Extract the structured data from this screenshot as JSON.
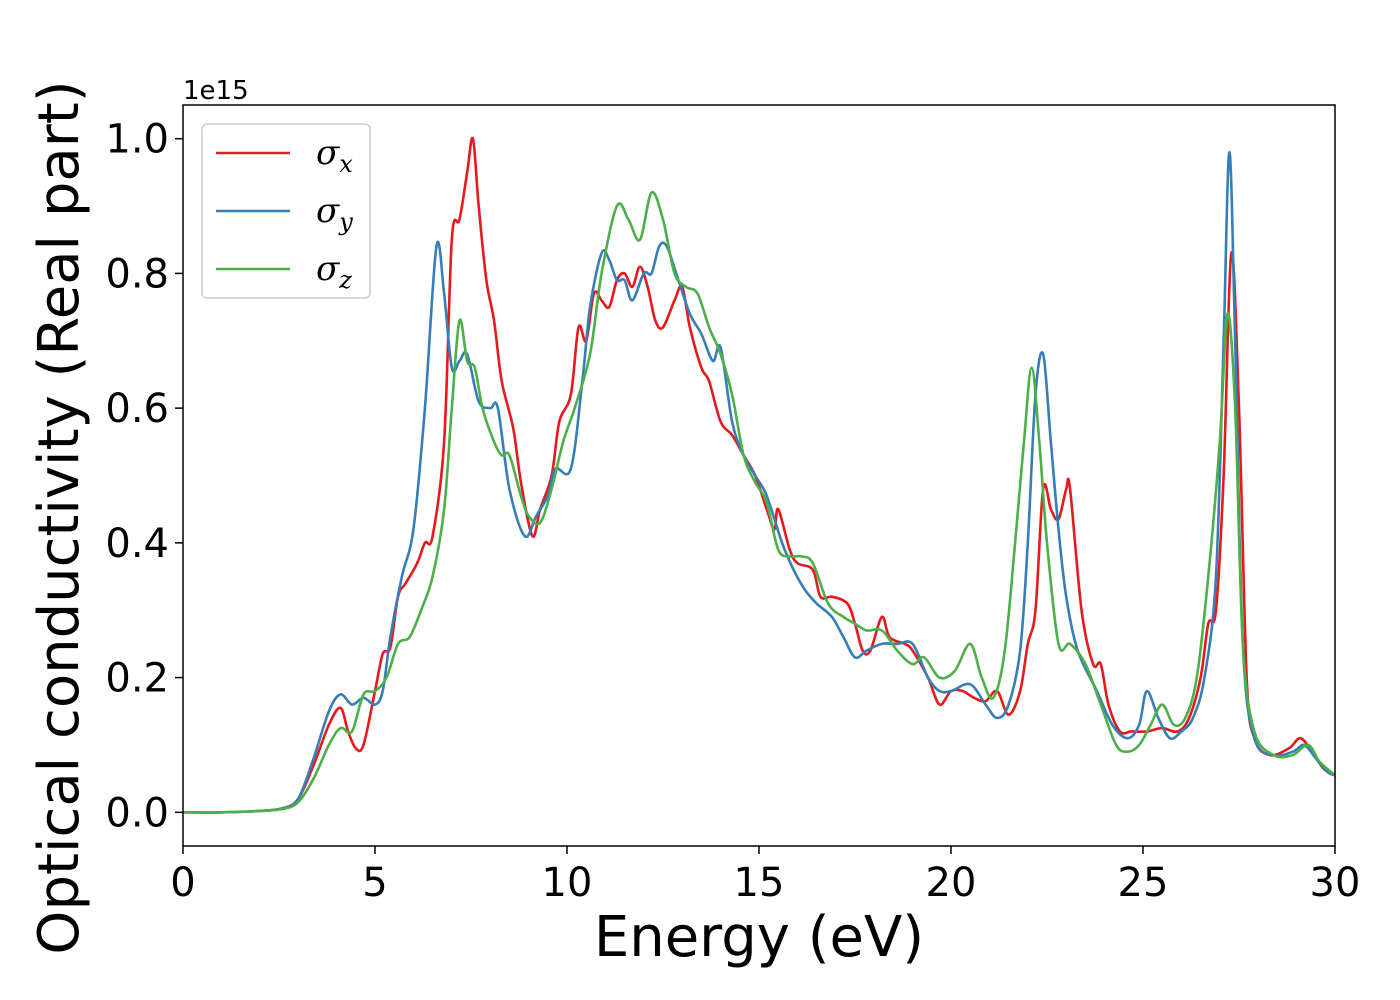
{
  "chart_data": {
    "type": "line",
    "title": "",
    "xlabel": "Energy (eV)",
    "ylabel": "Optical conductivity (Real part)",
    "y_offset_label": "1e15",
    "xlim": [
      0,
      30
    ],
    "ylim": [
      -0.05,
      1.05
    ],
    "x_ticks": [
      0,
      5,
      10,
      15,
      20,
      25,
      30
    ],
    "x_tick_labels": [
      "0",
      "5",
      "10",
      "15",
      "20",
      "25",
      "30"
    ],
    "y_ticks": [
      0.0,
      0.2,
      0.4,
      0.6,
      0.8,
      1.0
    ],
    "y_tick_labels": [
      "0.0",
      "0.2",
      "0.4",
      "0.6",
      "0.8",
      "1.0"
    ],
    "grid": false,
    "legend_position": "top-left",
    "series": [
      {
        "name": "σx",
        "legend_symbol": "σ",
        "legend_subscript": "x",
        "color": "#e41a1c",
        "points": [
          [
            0,
            0
          ],
          [
            1,
            0
          ],
          [
            2,
            0.002
          ],
          [
            2.6,
            0.006
          ],
          [
            3,
            0.02
          ],
          [
            3.4,
            0.07
          ],
          [
            3.8,
            0.13
          ],
          [
            4.1,
            0.155
          ],
          [
            4.3,
            0.12
          ],
          [
            4.5,
            0.095
          ],
          [
            4.7,
            0.1
          ],
          [
            5,
            0.18
          ],
          [
            5.2,
            0.235
          ],
          [
            5.4,
            0.245
          ],
          [
            5.6,
            0.32
          ],
          [
            5.8,
            0.34
          ],
          [
            6.1,
            0.37
          ],
          [
            6.3,
            0.4
          ],
          [
            6.5,
            0.41
          ],
          [
            6.8,
            0.55
          ],
          [
            7,
            0.85
          ],
          [
            7.2,
            0.88
          ],
          [
            7.4,
            0.95
          ],
          [
            7.55,
            1.0
          ],
          [
            7.7,
            0.9
          ],
          [
            7.9,
            0.79
          ],
          [
            8.1,
            0.73
          ],
          [
            8.3,
            0.64
          ],
          [
            8.6,
            0.57
          ],
          [
            8.8,
            0.49
          ],
          [
            9.1,
            0.41
          ],
          [
            9.3,
            0.45
          ],
          [
            9.6,
            0.5
          ],
          [
            9.8,
            0.58
          ],
          [
            10.1,
            0.62
          ],
          [
            10.3,
            0.72
          ],
          [
            10.5,
            0.7
          ],
          [
            10.7,
            0.77
          ],
          [
            10.9,
            0.76
          ],
          [
            11.1,
            0.75
          ],
          [
            11.3,
            0.79
          ],
          [
            11.5,
            0.8
          ],
          [
            11.7,
            0.78
          ],
          [
            11.9,
            0.81
          ],
          [
            12.1,
            0.78
          ],
          [
            12.3,
            0.73
          ],
          [
            12.5,
            0.72
          ],
          [
            12.8,
            0.76
          ],
          [
            13,
            0.78
          ],
          [
            13.2,
            0.72
          ],
          [
            13.5,
            0.66
          ],
          [
            13.7,
            0.64
          ],
          [
            14,
            0.58
          ],
          [
            14.3,
            0.56
          ],
          [
            14.6,
            0.53
          ],
          [
            14.9,
            0.5
          ],
          [
            15.2,
            0.45
          ],
          [
            15.4,
            0.42
          ],
          [
            15.5,
            0.45
          ],
          [
            15.8,
            0.39
          ],
          [
            16,
            0.37
          ],
          [
            16.4,
            0.36
          ],
          [
            16.6,
            0.32
          ],
          [
            16.9,
            0.32
          ],
          [
            17.3,
            0.31
          ],
          [
            17.5,
            0.28
          ],
          [
            17.7,
            0.24
          ],
          [
            17.9,
            0.24
          ],
          [
            18.2,
            0.29
          ],
          [
            18.4,
            0.26
          ],
          [
            18.8,
            0.25
          ],
          [
            19,
            0.24
          ],
          [
            19.4,
            0.2
          ],
          [
            19.7,
            0.16
          ],
          [
            20,
            0.18
          ],
          [
            20.3,
            0.18
          ],
          [
            20.6,
            0.17
          ],
          [
            20.9,
            0.165
          ],
          [
            21.2,
            0.18
          ],
          [
            21.5,
            0.145
          ],
          [
            21.8,
            0.18
          ],
          [
            22,
            0.25
          ],
          [
            22.2,
            0.3
          ],
          [
            22.4,
            0.48
          ],
          [
            22.6,
            0.45
          ],
          [
            22.8,
            0.435
          ],
          [
            23,
            0.48
          ],
          [
            23.1,
            0.48
          ],
          [
            23.4,
            0.3
          ],
          [
            23.7,
            0.22
          ],
          [
            23.9,
            0.22
          ],
          [
            24.1,
            0.16
          ],
          [
            24.4,
            0.12
          ],
          [
            24.7,
            0.12
          ],
          [
            25.1,
            0.12
          ],
          [
            25.5,
            0.125
          ],
          [
            25.9,
            0.12
          ],
          [
            26.2,
            0.14
          ],
          [
            26.5,
            0.2
          ],
          [
            26.7,
            0.28
          ],
          [
            26.9,
            0.3
          ],
          [
            27.1,
            0.5
          ],
          [
            27.3,
            0.83
          ],
          [
            27.5,
            0.6
          ],
          [
            27.7,
            0.2
          ],
          [
            27.9,
            0.11
          ],
          [
            28.3,
            0.085
          ],
          [
            28.8,
            0.095
          ],
          [
            29.1,
            0.11
          ],
          [
            29.4,
            0.09
          ],
          [
            29.7,
            0.065
          ],
          [
            30,
            0.055
          ]
        ]
      },
      {
        "name": "σy",
        "legend_symbol": "σ",
        "legend_subscript": "y",
        "color": "#377eb8",
        "points": [
          [
            0,
            0
          ],
          [
            1,
            0
          ],
          [
            2,
            0.002
          ],
          [
            2.6,
            0.006
          ],
          [
            3,
            0.02
          ],
          [
            3.4,
            0.08
          ],
          [
            3.8,
            0.15
          ],
          [
            4.1,
            0.175
          ],
          [
            4.4,
            0.16
          ],
          [
            4.7,
            0.17
          ],
          [
            5,
            0.16
          ],
          [
            5.2,
            0.18
          ],
          [
            5.4,
            0.26
          ],
          [
            5.7,
            0.35
          ],
          [
            6,
            0.42
          ],
          [
            6.3,
            0.6
          ],
          [
            6.6,
            0.84
          ],
          [
            6.8,
            0.77
          ],
          [
            7,
            0.66
          ],
          [
            7.2,
            0.67
          ],
          [
            7.4,
            0.68
          ],
          [
            7.7,
            0.61
          ],
          [
            8,
            0.6
          ],
          [
            8.2,
            0.6
          ],
          [
            8.5,
            0.48
          ],
          [
            8.9,
            0.41
          ],
          [
            9.2,
            0.44
          ],
          [
            9.5,
            0.47
          ],
          [
            9.7,
            0.51
          ],
          [
            10.1,
            0.51
          ],
          [
            10.4,
            0.64
          ],
          [
            10.6,
            0.75
          ],
          [
            10.9,
            0.83
          ],
          [
            11.1,
            0.82
          ],
          [
            11.3,
            0.79
          ],
          [
            11.5,
            0.79
          ],
          [
            11.7,
            0.76
          ],
          [
            12,
            0.8
          ],
          [
            12.2,
            0.8
          ],
          [
            12.4,
            0.84
          ],
          [
            12.6,
            0.84
          ],
          [
            12.9,
            0.79
          ],
          [
            13.2,
            0.74
          ],
          [
            13.5,
            0.71
          ],
          [
            13.8,
            0.67
          ],
          [
            14,
            0.69
          ],
          [
            14.3,
            0.58
          ],
          [
            14.6,
            0.53
          ],
          [
            14.9,
            0.5
          ],
          [
            15.2,
            0.47
          ],
          [
            15.6,
            0.4
          ],
          [
            15.9,
            0.36
          ],
          [
            16.2,
            0.33
          ],
          [
            16.5,
            0.31
          ],
          [
            16.9,
            0.29
          ],
          [
            17.2,
            0.26
          ],
          [
            17.5,
            0.23
          ],
          [
            17.8,
            0.24
          ],
          [
            18.2,
            0.25
          ],
          [
            18.6,
            0.25
          ],
          [
            19,
            0.25
          ],
          [
            19.4,
            0.2
          ],
          [
            19.7,
            0.18
          ],
          [
            20,
            0.18
          ],
          [
            20.5,
            0.19
          ],
          [
            20.9,
            0.16
          ],
          [
            21.2,
            0.14
          ],
          [
            21.5,
            0.16
          ],
          [
            21.8,
            0.24
          ],
          [
            22,
            0.4
          ],
          [
            22.2,
            0.62
          ],
          [
            22.4,
            0.68
          ],
          [
            22.6,
            0.55
          ],
          [
            22.8,
            0.42
          ],
          [
            23,
            0.32
          ],
          [
            23.3,
            0.24
          ],
          [
            23.8,
            0.18
          ],
          [
            24.2,
            0.13
          ],
          [
            24.6,
            0.11
          ],
          [
            24.9,
            0.13
          ],
          [
            25.1,
            0.18
          ],
          [
            25.4,
            0.14
          ],
          [
            25.7,
            0.11
          ],
          [
            26,
            0.12
          ],
          [
            26.3,
            0.14
          ],
          [
            26.6,
            0.2
          ],
          [
            26.9,
            0.35
          ],
          [
            27.1,
            0.7
          ],
          [
            27.25,
            0.98
          ],
          [
            27.4,
            0.7
          ],
          [
            27.6,
            0.25
          ],
          [
            27.9,
            0.11
          ],
          [
            28.4,
            0.085
          ],
          [
            28.9,
            0.09
          ],
          [
            29.2,
            0.1
          ],
          [
            29.5,
            0.08
          ],
          [
            29.8,
            0.06
          ],
          [
            30,
            0.055
          ]
        ]
      },
      {
        "name": "σz",
        "legend_symbol": "σ",
        "legend_subscript": "z",
        "color": "#4daf4a",
        "points": [
          [
            0,
            0
          ],
          [
            1,
            0
          ],
          [
            2,
            0.002
          ],
          [
            2.6,
            0.005
          ],
          [
            3,
            0.015
          ],
          [
            3.4,
            0.05
          ],
          [
            3.8,
            0.1
          ],
          [
            4.1,
            0.125
          ],
          [
            4.4,
            0.12
          ],
          [
            4.7,
            0.175
          ],
          [
            5,
            0.18
          ],
          [
            5.3,
            0.2
          ],
          [
            5.6,
            0.25
          ],
          [
            5.9,
            0.26
          ],
          [
            6.2,
            0.3
          ],
          [
            6.5,
            0.35
          ],
          [
            6.8,
            0.45
          ],
          [
            7,
            0.6
          ],
          [
            7.2,
            0.73
          ],
          [
            7.4,
            0.67
          ],
          [
            7.6,
            0.66
          ],
          [
            7.8,
            0.6
          ],
          [
            8.1,
            0.55
          ],
          [
            8.3,
            0.53
          ],
          [
            8.5,
            0.53
          ],
          [
            8.8,
            0.47
          ],
          [
            9,
            0.44
          ],
          [
            9.3,
            0.43
          ],
          [
            9.6,
            0.48
          ],
          [
            9.9,
            0.55
          ],
          [
            10.2,
            0.6
          ],
          [
            10.6,
            0.68
          ],
          [
            10.9,
            0.8
          ],
          [
            11.3,
            0.9
          ],
          [
            11.6,
            0.88
          ],
          [
            11.9,
            0.85
          ],
          [
            12.2,
            0.92
          ],
          [
            12.5,
            0.88
          ],
          [
            12.8,
            0.8
          ],
          [
            13.1,
            0.78
          ],
          [
            13.4,
            0.77
          ],
          [
            13.7,
            0.72
          ],
          [
            14,
            0.68
          ],
          [
            14.3,
            0.62
          ],
          [
            14.6,
            0.53
          ],
          [
            14.9,
            0.49
          ],
          [
            15.2,
            0.46
          ],
          [
            15.5,
            0.39
          ],
          [
            15.8,
            0.38
          ],
          [
            16.1,
            0.38
          ],
          [
            16.4,
            0.37
          ],
          [
            16.8,
            0.31
          ],
          [
            17.2,
            0.29
          ],
          [
            17.5,
            0.28
          ],
          [
            17.8,
            0.27
          ],
          [
            18.2,
            0.27
          ],
          [
            18.6,
            0.24
          ],
          [
            19,
            0.22
          ],
          [
            19.3,
            0.23
          ],
          [
            19.7,
            0.2
          ],
          [
            20.1,
            0.21
          ],
          [
            20.5,
            0.25
          ],
          [
            20.8,
            0.2
          ],
          [
            21.1,
            0.17
          ],
          [
            21.4,
            0.24
          ],
          [
            21.7,
            0.42
          ],
          [
            21.9,
            0.55
          ],
          [
            22.1,
            0.66
          ],
          [
            22.3,
            0.55
          ],
          [
            22.5,
            0.4
          ],
          [
            22.8,
            0.25
          ],
          [
            23.1,
            0.25
          ],
          [
            23.5,
            0.22
          ],
          [
            23.9,
            0.16
          ],
          [
            24.3,
            0.1
          ],
          [
            24.6,
            0.09
          ],
          [
            24.9,
            0.1
          ],
          [
            25.2,
            0.13
          ],
          [
            25.5,
            0.16
          ],
          [
            25.8,
            0.13
          ],
          [
            26.1,
            0.14
          ],
          [
            26.4,
            0.2
          ],
          [
            26.7,
            0.35
          ],
          [
            27,
            0.55
          ],
          [
            27.2,
            0.74
          ],
          [
            27.4,
            0.6
          ],
          [
            27.6,
            0.25
          ],
          [
            27.9,
            0.12
          ],
          [
            28.4,
            0.085
          ],
          [
            28.9,
            0.085
          ],
          [
            29.3,
            0.1
          ],
          [
            29.6,
            0.075
          ],
          [
            30,
            0.055
          ]
        ]
      }
    ]
  }
}
